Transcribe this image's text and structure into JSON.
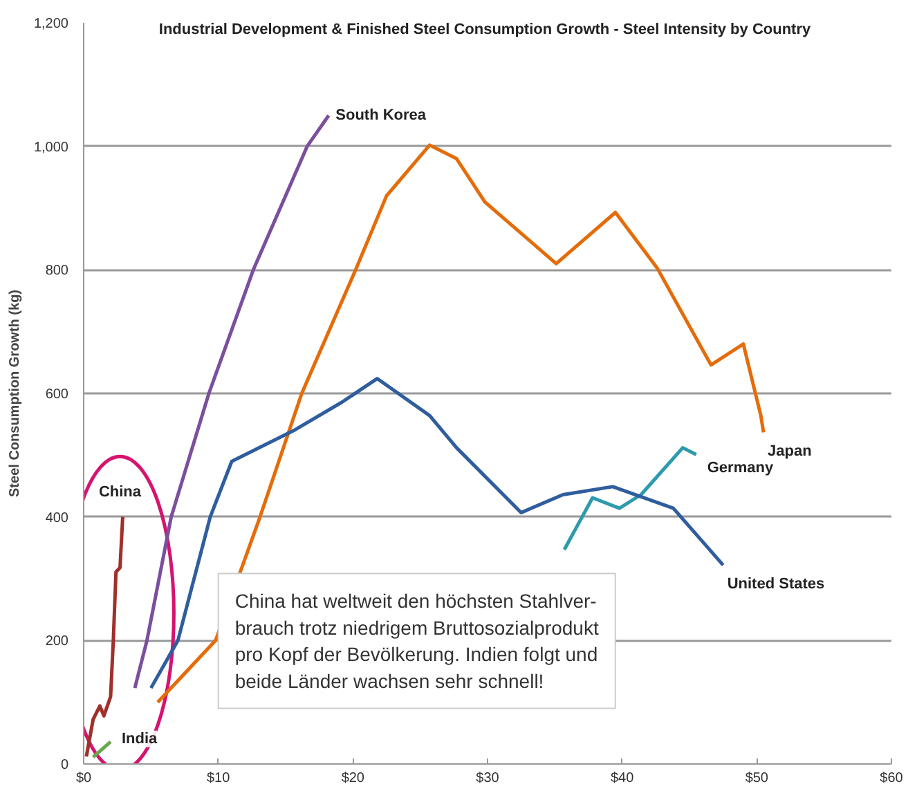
{
  "chart_data": {
    "type": "line",
    "title": "Industrial Development & Finished Steel Consumption Growth - Steel Intensity by Country",
    "ylabel": "Steel Consumption Growth (kg)",
    "xlim": [
      0,
      60
    ],
    "ylim": [
      0,
      1200
    ],
    "xticks": [
      {
        "value": 0,
        "label": "$0"
      },
      {
        "value": 10,
        "label": "$10"
      },
      {
        "value": 20,
        "label": "$20"
      },
      {
        "value": 30,
        "label": "$30"
      },
      {
        "value": 40,
        "label": "$40"
      },
      {
        "value": 50,
        "label": "$50"
      },
      {
        "value": 60,
        "label": "$60"
      }
    ],
    "yticks": [
      0,
      200,
      400,
      600,
      800,
      {
        "value": 1000,
        "label": "1,000"
      },
      {
        "value": 1200,
        "label": "1,200"
      }
    ],
    "grid": "y",
    "line_style": "solid",
    "marker": "none",
    "series": [
      {
        "name": "South Korea",
        "color": "#7b4f9e",
        "x": [
          3.8,
          4.7,
          6.5,
          9.3,
          12.6,
          16.6,
          18.2
        ],
        "values": [
          123,
          200,
          400,
          600,
          800,
          1000,
          1050
        ]
      },
      {
        "name": "Japan",
        "color": "#e46c0a",
        "x": [
          5.5,
          9.8,
          13.1,
          16.2,
          20.2,
          22.5,
          25.7,
          27.7,
          29.8,
          35.1,
          39.5,
          42.6,
          46.6,
          49.0,
          50.3,
          50.5
        ],
        "values": [
          100,
          200,
          400,
          600,
          800,
          920,
          1002,
          980,
          910,
          810,
          893,
          803,
          646,
          680,
          564,
          537
        ]
      },
      {
        "name": "Germany",
        "color": "#2e9aad",
        "x": [
          35.7,
          37.8,
          39.8,
          41.4,
          44.5,
          45.5
        ],
        "values": [
          347,
          431,
          414,
          436,
          512,
          501
        ]
      },
      {
        "name": "United States",
        "color": "#2f5d9e",
        "x": [
          5.0,
          7.0,
          9.4,
          11.0,
          15.7,
          19.2,
          21.8,
          25.7,
          27.7,
          32.5,
          35.6,
          39.3,
          43.8,
          47.5
        ],
        "values": [
          123,
          200,
          400,
          490,
          541,
          586,
          624,
          564,
          512,
          407,
          436,
          449,
          414,
          322
        ]
      },
      {
        "name": "China",
        "color": "#a0302a",
        "x": [
          0.2,
          0.7,
          1.2,
          1.5,
          2.0,
          2.2,
          2.4,
          2.7,
          2.9
        ],
        "values": [
          12,
          72,
          94,
          78,
          109,
          199,
          311,
          318,
          400
        ]
      },
      {
        "name": "India",
        "color": "#6aa84f",
        "x": [
          0.7,
          2.0
        ],
        "values": [
          11,
          36
        ]
      }
    ],
    "annotations": [
      "China hat weltweit den höchsten Stahlver-\nbrauch trotz niedrigem Bruttosozialprodukt\npro Kopf der Bevölkerung. Indien folgt und\nbeide Länder wachsen sehr schnell!"
    ]
  }
}
